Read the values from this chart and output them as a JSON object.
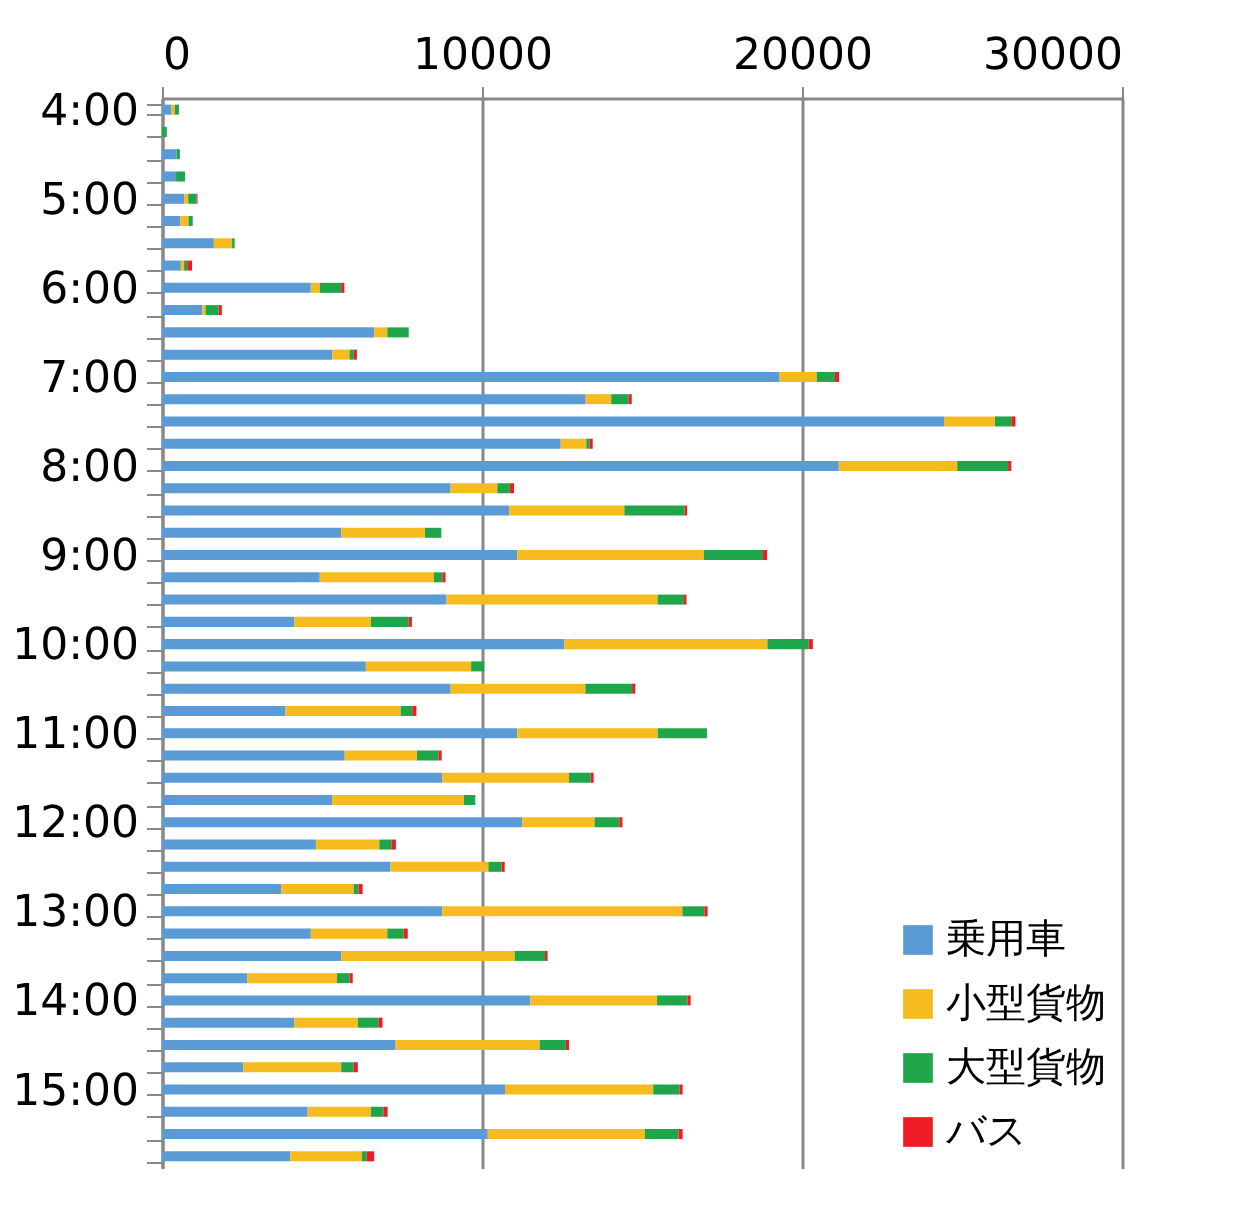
{
  "chart_data": {
    "type": "bar",
    "orientation": "horizontal",
    "stacked": true,
    "categories": [
      "4:00",
      null,
      null,
      null,
      "5:00",
      null,
      null,
      null,
      "6:00",
      null,
      null,
      null,
      "7:00",
      null,
      null,
      null,
      "8:00",
      null,
      null,
      null,
      "9:00",
      null,
      null,
      null,
      "10:00",
      null,
      null,
      null,
      "11:00",
      null,
      null,
      null,
      "12:00",
      null,
      null,
      null,
      "13:00",
      null,
      null,
      null,
      "14:00",
      null,
      null,
      null,
      "15:00",
      null,
      null,
      null
    ],
    "series": [
      {
        "name": "乗用車",
        "color": "#5b9bd5",
        "values": [
          300,
          0,
          460,
          440,
          690,
          570,
          1620,
          590,
          4650,
          1260,
          6630,
          5320,
          19300,
          13240,
          24440,
          12460,
          21150,
          9020,
          10850,
          5600,
          11100,
          4930,
          8890,
          4140,
          12570,
          6370,
          9020,
          3860,
          11100,
          5710,
          8760,
          5320,
          11260,
          4810,
          7140,
          3730,
          8760,
          4650,
          5600,
          2670,
          11510,
          4140,
          7300,
          2540,
          10720,
          4550,
          10180,
          4010
        ]
      },
      {
        "name": "小型貨物",
        "color": "#f6bb1f",
        "values": [
          100,
          0,
          0,
          0,
          130,
          260,
          570,
          100,
          280,
          100,
          410,
          540,
          1160,
          800,
          1590,
          800,
          3700,
          1460,
          3600,
          2620,
          5830,
          3570,
          6600,
          2390,
          6350,
          3290,
          4210,
          3600,
          4390,
          2260,
          3960,
          4110,
          2260,
          1980,
          3060,
          2260,
          7500,
          2390,
          5420,
          2800,
          3960,
          1980,
          4500,
          3060,
          4630,
          1980,
          4910,
          2240
        ]
      },
      {
        "name": "大型貨物",
        "color": "#1fa64a",
        "values": [
          130,
          150,
          100,
          280,
          260,
          130,
          80,
          100,
          670,
          410,
          670,
          130,
          570,
          540,
          510,
          100,
          1590,
          390,
          1880,
          510,
          1850,
          260,
          820,
          1180,
          1290,
          410,
          1460,
          360,
          1540,
          670,
          670,
          360,
          770,
          390,
          410,
          150,
          690,
          510,
          950,
          390,
          950,
          640,
          820,
          390,
          820,
          390,
          1050,
          150
        ]
      },
      {
        "name": "バス",
        "color": "#ee1c24",
        "values": [
          0,
          0,
          0,
          0,
          30,
          0,
          0,
          150,
          100,
          100,
          0,
          100,
          130,
          100,
          130,
          100,
          100,
          130,
          80,
          0,
          130,
          100,
          80,
          100,
          130,
          0,
          100,
          130,
          0,
          100,
          100,
          0,
          100,
          130,
          100,
          130,
          100,
          130,
          80,
          100,
          100,
          130,
          100,
          130,
          100,
          130,
          130,
          230
        ]
      }
    ],
    "xlim": [
      0,
      30000
    ],
    "xticks": [
      0,
      10000,
      20000,
      30000
    ],
    "grid": "x",
    "legend": "bottom right"
  }
}
